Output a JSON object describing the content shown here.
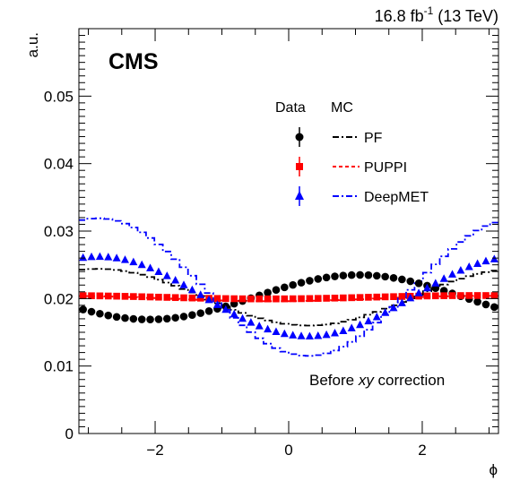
{
  "header": {
    "experiment": "CMS",
    "lumi_value": "16.8 fb",
    "lumi_exponent": "-1",
    "lumi_energy": " (13 TeV)"
  },
  "annotation": {
    "prefix": "Before ",
    "italic": "xy",
    "suffix": " correction"
  },
  "legend": {
    "header_data": "Data",
    "header_mc": "MC",
    "entries": [
      {
        "label": "PF",
        "color": "#000000",
        "marker": "circle",
        "mc_style": "dash-dot"
      },
      {
        "label": "PUPPI",
        "color": "#ff0000",
        "marker": "square",
        "mc_style": "dashed"
      },
      {
        "label": "DeepMET",
        "color": "#0000ff",
        "marker": "triangle",
        "mc_style": "dash-dot"
      }
    ]
  },
  "chart_data": {
    "type": "line",
    "xlabel": "ϕ",
    "ylabel": "a.u.",
    "xlim": [
      -3.1416,
      3.1416
    ],
    "ylim": [
      0,
      0.06
    ],
    "x_ticks": [
      -2,
      0,
      2
    ],
    "x_tick_labels": [
      "−2",
      "0",
      "2"
    ],
    "y_ticks": [
      0,
      0.01,
      0.02,
      0.03,
      0.04,
      0.05
    ],
    "y_tick_labels": [
      "0",
      "0.01",
      "0.02",
      "0.03",
      "0.04",
      "0.05"
    ],
    "grid": false,
    "legend_position": "top-right",
    "n_bins": 50,
    "series_model": "y = c + a*cos(phi - phi0); 50 bins over [-pi, pi]",
    "series": [
      {
        "name": "PF",
        "kind": "data",
        "marker": "circle",
        "color": "#000000",
        "c": 0.0202,
        "a": 0.0033,
        "phi0": 1.05
      },
      {
        "name": "PUPPI",
        "kind": "data",
        "marker": "square",
        "color": "#ff0000",
        "c": 0.0202,
        "a": 0.00025,
        "phi0": 2.8
      },
      {
        "name": "DeepMET",
        "kind": "data",
        "marker": "triangle",
        "color": "#0000ff",
        "c": 0.0203,
        "a": 0.0059,
        "phi0": -2.85
      },
      {
        "name": "PF",
        "kind": "mc",
        "style": "dash-dot",
        "color": "#000000",
        "c": 0.0202,
        "a": 0.0042,
        "phi0": -2.85
      },
      {
        "name": "PUPPI",
        "kind": "mc",
        "style": "dashed",
        "color": "#ff0000",
        "c": 0.02,
        "a": 0.0004,
        "phi0": 2.9
      },
      {
        "name": "DeepMET",
        "kind": "mc",
        "style": "dash-dot",
        "color": "#0000ff",
        "c": 0.0217,
        "a": 0.0102,
        "phi0": -2.85
      }
    ]
  }
}
